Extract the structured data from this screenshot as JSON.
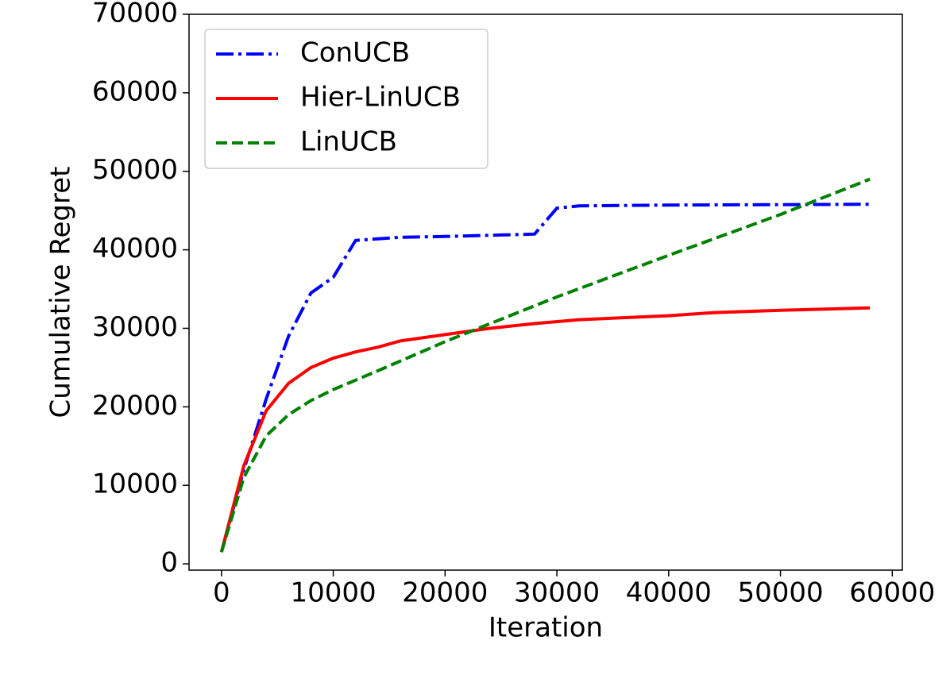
{
  "chart_data": {
    "type": "line",
    "x_label": "Iteration",
    "y_label": "Cumulative Regret",
    "xlim": [
      -2900,
      60900
    ],
    "xticks": [
      0,
      10000,
      20000,
      30000,
      40000,
      50000,
      60000
    ],
    "ylim": [
      -800,
      70000
    ],
    "yticks": [
      0,
      10000,
      20000,
      30000,
      40000,
      50000,
      60000,
      70000
    ],
    "legend": "upper left",
    "series": [
      {
        "name": "ConUCB",
        "color": "#0000ff",
        "linestyle": "dashdot",
        "x": [
          0,
          2000,
          4000,
          6000,
          8000,
          10000,
          12000,
          16000,
          20000,
          28000,
          30000,
          32000,
          40000,
          58000
        ],
        "values": [
          1500,
          12000,
          21000,
          29000,
          34500,
          36500,
          41200,
          41600,
          41700,
          42000,
          45300,
          45600,
          45700,
          45800
        ]
      },
      {
        "name": "Hier-LinUCB",
        "color": "#ff0000",
        "linestyle": "solid",
        "x": [
          0,
          2000,
          4000,
          6000,
          8000,
          10000,
          12000,
          14000,
          16000,
          20000,
          24000,
          28000,
          32000,
          40000,
          44000,
          50000,
          58000
        ],
        "values": [
          1500,
          12500,
          19500,
          23000,
          25000,
          26200,
          27000,
          27600,
          28400,
          29200,
          30000,
          30600,
          31100,
          31600,
          32000,
          32300,
          32600
        ]
      },
      {
        "name": "LinUCB",
        "color": "#008000",
        "linestyle": "dashed",
        "x": [
          0,
          2000,
          4000,
          6000,
          8000,
          10000,
          14000,
          20000,
          30000,
          40000,
          50000,
          58000
        ],
        "values": [
          1500,
          11000,
          16300,
          19000,
          20800,
          22200,
          24600,
          28300,
          34000,
          39300,
          44500,
          49000
        ]
      }
    ]
  }
}
